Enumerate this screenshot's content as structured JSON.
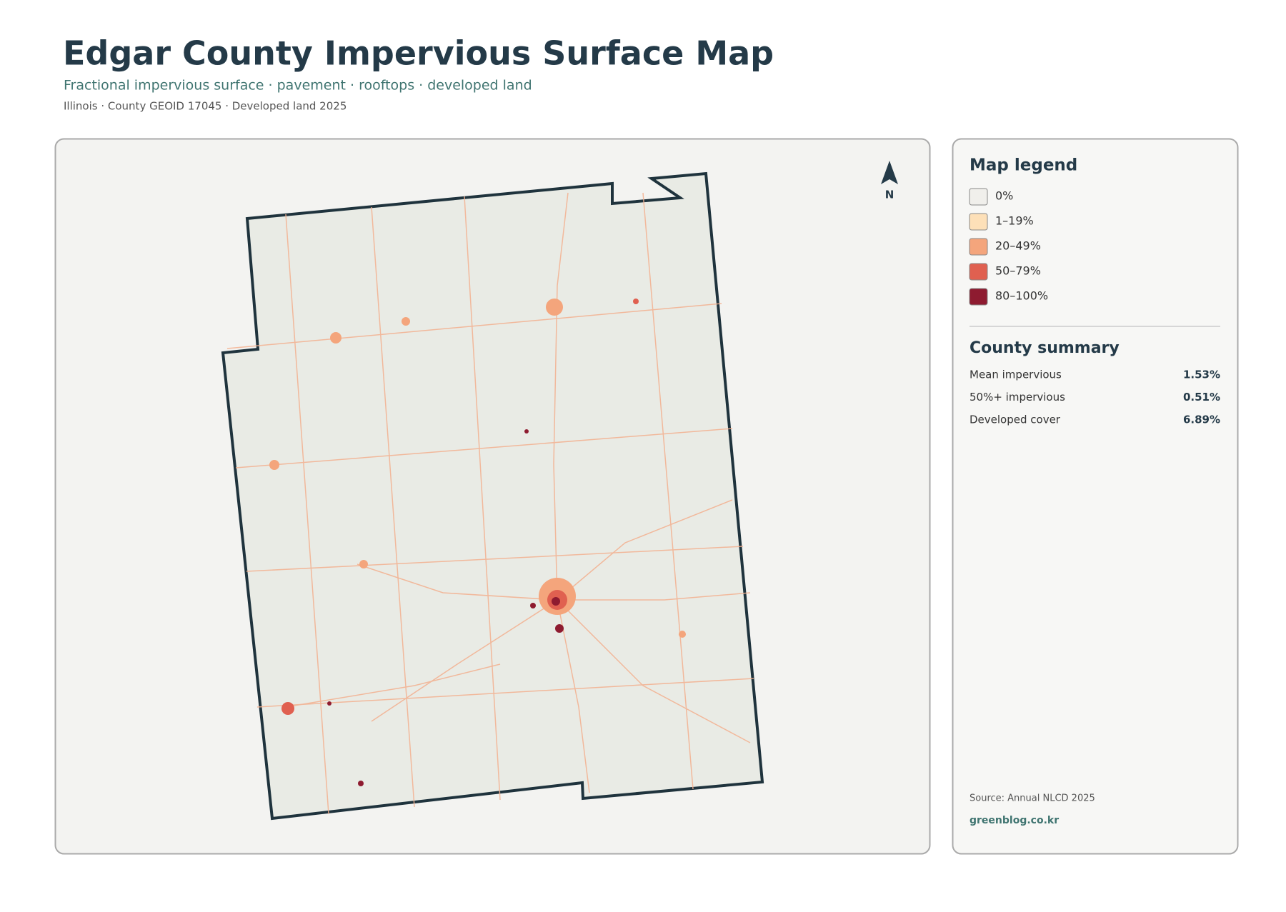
{
  "header": {
    "title": "Edgar County Impervious Surface Map",
    "subtitle": "Fractional impervious surface · pavement · rooftops · developed land",
    "meta": "Illinois · County GEOID 17045 · Developed land 2025"
  },
  "map": {
    "north_label": "N"
  },
  "legend": {
    "title": "Map legend",
    "items": [
      {
        "label": "0%",
        "color": "#f0efeb"
      },
      {
        "label": "1–19%",
        "color": "#fde0b8"
      },
      {
        "label": "20–49%",
        "color": "#f4a57c"
      },
      {
        "label": "50–79%",
        "color": "#e06050"
      },
      {
        "label": "80–100%",
        "color": "#8e1b30"
      }
    ]
  },
  "summary": {
    "title": "County summary",
    "rows": [
      {
        "label": "Mean impervious",
        "value": "1.53%"
      },
      {
        "label": "50%+ impervious",
        "value": "0.51%"
      },
      {
        "label": "Developed cover",
        "value": "6.89%"
      }
    ]
  },
  "footer": {
    "source": "Source: Annual NLCD 2025",
    "site": "greenblog.co.kr"
  }
}
